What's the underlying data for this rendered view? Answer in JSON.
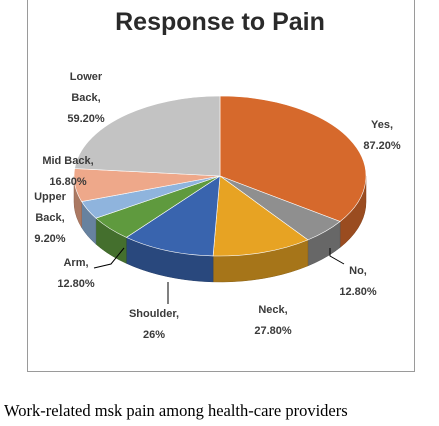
{
  "chart_data": {
    "type": "pie",
    "title": "Response to Pain",
    "categories": [
      "Yes",
      "No",
      "Neck",
      "Shoulder",
      "Arm",
      "Upper Back",
      "Mid Back",
      "Lower Back"
    ],
    "values": [
      87.2,
      12.8,
      27.8,
      26,
      12.8,
      9.2,
      16.8,
      59.2
    ],
    "data_labels": [
      [
        "Yes,",
        "87.20%"
      ],
      [
        "No,",
        "12.80%"
      ],
      [
        "Neck,",
        "27.80%"
      ],
      [
        "Shoulder,",
        "26%"
      ],
      [
        "Arm,",
        "12.80%"
      ],
      [
        "Upper",
        "Back,",
        "9.20%"
      ],
      [
        "Mid Back,",
        "16.80%"
      ],
      [
        "Lower",
        "Back,",
        "59.20%"
      ]
    ],
    "colors": [
      "#d6692c",
      "#8f8f8f",
      "#e7a323",
      "#3964ae",
      "#5f9a3e",
      "#8fb4dd",
      "#eea88a",
      "#c3c3c3"
    ],
    "legend": "none",
    "style": "3d-pie"
  },
  "caption": "Work-related msk pain among health-care providers"
}
